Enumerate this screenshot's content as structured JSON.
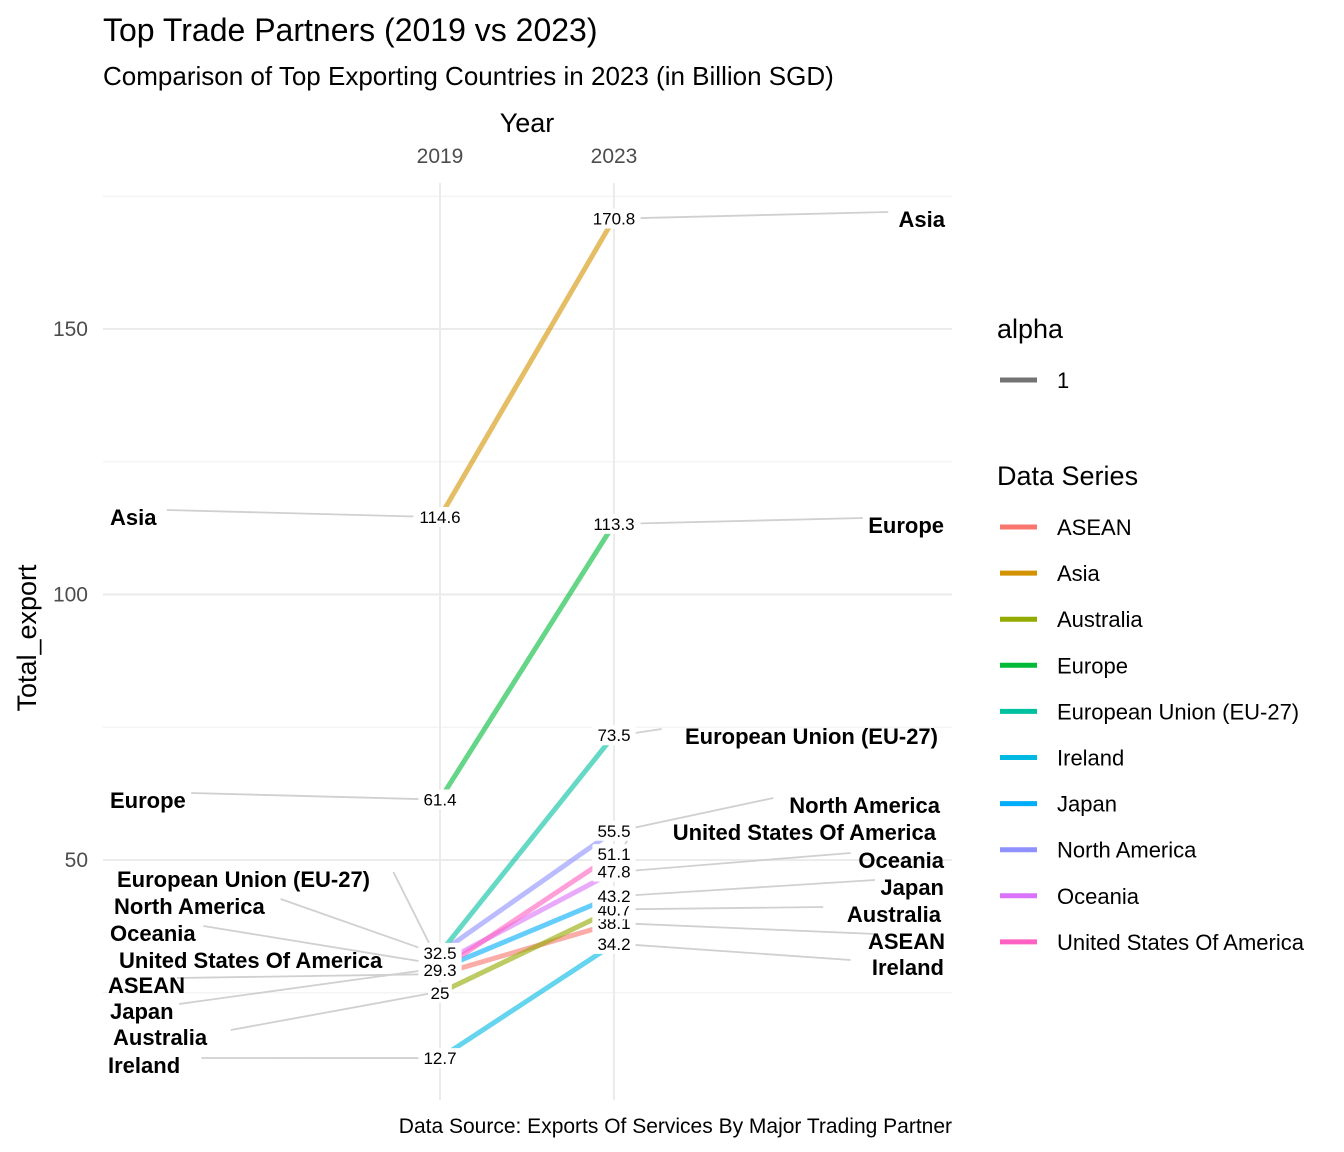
{
  "chart_data": {
    "type": "line",
    "title": "Top Trade Partners (2019 vs 2023)",
    "subtitle": "Comparison of Top Exporting Countries in 2023 (in Billion SGD)",
    "xlabel": "Year",
    "ylabel": "Total_export",
    "caption": "Data Source: Exports Of Services By Major Trading Partner",
    "x": [
      "2019",
      "2023"
    ],
    "yticks": [
      50,
      100,
      150
    ],
    "ylim": [
      5,
      175
    ],
    "grid": true,
    "legend_position": "right",
    "legend_alpha": {
      "title": "alpha",
      "items": [
        "1"
      ]
    },
    "legend_series_title": "Data Series",
    "series": [
      {
        "name": "ASEAN",
        "color": "#F8766D",
        "values": [
          28.5,
          38.1
        ],
        "labels": [
          "",
          "38.1"
        ],
        "left_label": "ASEAN",
        "right_label": "ASEAN"
      },
      {
        "name": "Asia",
        "color": "#D39200",
        "values": [
          114.6,
          170.8
        ],
        "labels": [
          "114.6",
          "170.8"
        ],
        "left_label": "Asia",
        "right_label": "Asia"
      },
      {
        "name": "Australia",
        "color": "#93AA00",
        "values": [
          25,
          40.7
        ],
        "labels": [
          "25",
          "40.7"
        ],
        "left_label": "Australia",
        "right_label": "Australia"
      },
      {
        "name": "Europe",
        "color": "#00BA38",
        "values": [
          61.4,
          113.3
        ],
        "labels": [
          "61.4",
          "113.3"
        ],
        "left_label": "Europe",
        "right_label": "Europe"
      },
      {
        "name": "European Union (EU-27)",
        "color": "#00C19F",
        "values": [
          32.5,
          73.5
        ],
        "labels": [
          "",
          "73.5"
        ],
        "left_label": "European Union (EU-27)",
        "right_label": "European Union (EU-27)"
      },
      {
        "name": "Ireland",
        "color": "#00B9E3",
        "values": [
          12.7,
          34.2
        ],
        "labels": [
          "12.7",
          "34.2"
        ],
        "left_label": "Ireland",
        "right_label": "Ireland"
      },
      {
        "name": "Japan",
        "color": "#00ADFA",
        "values": [
          29.5,
          43.2
        ],
        "labels": [
          "",
          "43.2"
        ],
        "left_label": "Japan",
        "right_label": "Japan"
      },
      {
        "name": "North America",
        "color": "#8F91FF",
        "values": [
          32.5,
          55.5
        ],
        "labels": [
          "32.5",
          "55.5"
        ],
        "left_label": "North America",
        "right_label": "North America"
      },
      {
        "name": "Oceania",
        "color": "#DB72FB",
        "values": [
          30.5,
          47.8
        ],
        "labels": [
          "",
          "47.8"
        ],
        "left_label": "Oceania",
        "right_label": "Oceania"
      },
      {
        "name": "United States Of America",
        "color": "#FF61C3",
        "values": [
          29.3,
          51.1
        ],
        "labels": [
          "29.3",
          "51.1"
        ],
        "left_label": "United States Of America",
        "right_label": "United States Of America"
      }
    ]
  }
}
